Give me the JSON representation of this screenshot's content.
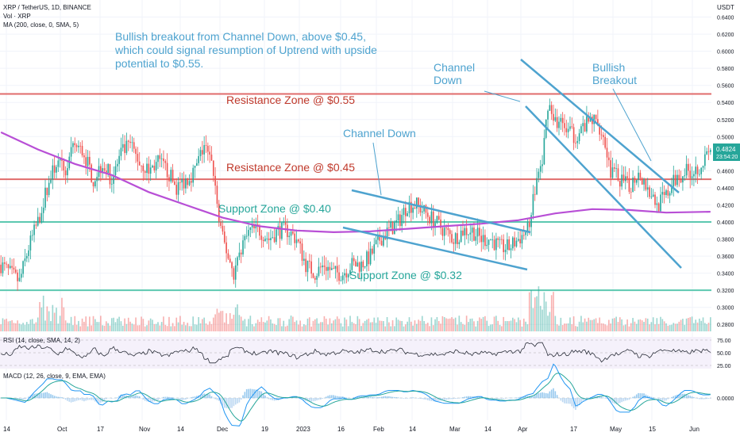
{
  "header": {
    "symbol_line": "XRP / TetherUS, 1D, BINANCE",
    "vol_line": "Vol · XRP",
    "ma_line": "MA (200, close, 0, SMA, 5)",
    "currency": "USDT"
  },
  "note": "Bullish breakout from Channel Down, above $0.45, which could signal resumption of Uptrend with upside potential to $0.55.",
  "annotations": {
    "resistance_055": "Resistance Zone @ $0.55",
    "resistance_045": "Resistance Zone @ $0.45",
    "support_040": "Support Zone @ $0.40",
    "support_032": "Support Zone @ $0.32",
    "channel_down_mid": "Channel Down",
    "channel_down_top_1": "Channel",
    "channel_down_top_2": "Down",
    "bullish_1": "Bullish",
    "bullish_2": "Breakout"
  },
  "price_badge": {
    "price": "0.4824",
    "countdown": "23:54:20"
  },
  "panels": {
    "rsi_label": "RSI (14, close, SMA, 14, 2)",
    "macd_label": "MACD (12, 26, close, 9, EMA, EMA)"
  },
  "colors": {
    "up": "#26a69a",
    "down": "#ef5350",
    "ma": "#b84fd6",
    "annot": "#4ea3cf",
    "resistance": "#e06b6b",
    "support": "#5cc8b0"
  },
  "chart_data": {
    "type": "candlestick",
    "symbol": "XRP/USDT",
    "interval": "1D",
    "x_tick_labels": [
      "14",
      "Oct",
      "17",
      "Nov",
      "14",
      "Dec",
      "19",
      "2023",
      "16",
      "Feb",
      "14",
      "Mar",
      "14",
      "Apr",
      "17",
      "May",
      "15",
      "Jun"
    ],
    "y_tick_labels": [
      "0.6400",
      "0.6200",
      "0.6000",
      "0.5800",
      "0.5600",
      "0.5400",
      "0.5200",
      "0.5000",
      "0.4800",
      "0.4600",
      "0.4400",
      "0.4200",
      "0.4000",
      "0.3800",
      "0.3600",
      "0.3400",
      "0.3200",
      "0.3000",
      "0.2800"
    ],
    "ylim": [
      0.27,
      0.66
    ],
    "close_path": [
      [
        0,
        0.35
      ],
      [
        5,
        0.34
      ],
      [
        10,
        0.33
      ],
      [
        15,
        0.37
      ],
      [
        20,
        0.4
      ],
      [
        25,
        0.44
      ],
      [
        30,
        0.47
      ],
      [
        35,
        0.46
      ],
      [
        40,
        0.49
      ],
      [
        45,
        0.48
      ],
      [
        50,
        0.45
      ],
      [
        55,
        0.47
      ],
      [
        60,
        0.45
      ],
      [
        65,
        0.48
      ],
      [
        70,
        0.49
      ],
      [
        75,
        0.47
      ],
      [
        80,
        0.46
      ],
      [
        85,
        0.47
      ],
      [
        90,
        0.46
      ],
      [
        95,
        0.44
      ],
      [
        100,
        0.45
      ],
      [
        105,
        0.46
      ],
      [
        110,
        0.49
      ],
      [
        115,
        0.46
      ],
      [
        118,
        0.4
      ],
      [
        120,
        0.38
      ],
      [
        123,
        0.36
      ],
      [
        126,
        0.34
      ],
      [
        130,
        0.37
      ],
      [
        135,
        0.39
      ],
      [
        140,
        0.39
      ],
      [
        145,
        0.38
      ],
      [
        150,
        0.39
      ],
      [
        155,
        0.39
      ],
      [
        160,
        0.38
      ],
      [
        165,
        0.35
      ],
      [
        170,
        0.34
      ],
      [
        175,
        0.35
      ],
      [
        180,
        0.34
      ],
      [
        185,
        0.34
      ],
      [
        190,
        0.35
      ],
      [
        195,
        0.35
      ],
      [
        200,
        0.36
      ],
      [
        205,
        0.38
      ],
      [
        210,
        0.39
      ],
      [
        215,
        0.4
      ],
      [
        220,
        0.42
      ],
      [
        225,
        0.42
      ],
      [
        230,
        0.41
      ],
      [
        235,
        0.4
      ],
      [
        240,
        0.39
      ],
      [
        245,
        0.38
      ],
      [
        250,
        0.39
      ],
      [
        255,
        0.39
      ],
      [
        260,
        0.38
      ],
      [
        265,
        0.38
      ],
      [
        270,
        0.37
      ],
      [
        275,
        0.37
      ],
      [
        280,
        0.38
      ],
      [
        285,
        0.39
      ],
      [
        290,
        0.45
      ],
      [
        293,
        0.47
      ],
      [
        296,
        0.54
      ],
      [
        300,
        0.52
      ],
      [
        305,
        0.51
      ],
      [
        310,
        0.5
      ],
      [
        315,
        0.51
      ],
      [
        320,
        0.52
      ],
      [
        325,
        0.51
      ],
      [
        330,
        0.46
      ],
      [
        335,
        0.45
      ],
      [
        340,
        0.44
      ],
      [
        345,
        0.46
      ],
      [
        350,
        0.44
      ],
      [
        355,
        0.42
      ],
      [
        360,
        0.43
      ],
      [
        365,
        0.45
      ],
      [
        370,
        0.46
      ],
      [
        375,
        0.46
      ],
      [
        380,
        0.47
      ],
      [
        384,
        0.4824
      ]
    ],
    "ma200_path": [
      [
        0,
        0.505
      ],
      [
        20,
        0.485
      ],
      [
        40,
        0.468
      ],
      [
        60,
        0.455
      ],
      [
        80,
        0.435
      ],
      [
        100,
        0.42
      ],
      [
        120,
        0.405
      ],
      [
        140,
        0.395
      ],
      [
        160,
        0.39
      ],
      [
        180,
        0.388
      ],
      [
        200,
        0.389
      ],
      [
        220,
        0.392
      ],
      [
        240,
        0.395
      ],
      [
        260,
        0.398
      ],
      [
        280,
        0.402
      ],
      [
        300,
        0.41
      ],
      [
        320,
        0.415
      ],
      [
        340,
        0.414
      ],
      [
        360,
        0.411
      ],
      [
        384,
        0.412
      ]
    ],
    "zones": [
      {
        "label": "Resistance Zone @ $0.55",
        "value": 0.55
      },
      {
        "label": "Resistance Zone @ $0.45",
        "value": 0.45
      },
      {
        "label": "Support Zone @ $0.40",
        "value": 0.4
      },
      {
        "label": "Support Zone @ $0.32",
        "value": 0.32
      }
    ],
    "rsi_levels": [
      "75.00",
      "50.00",
      "25.00"
    ],
    "macd_level": "0.0000"
  }
}
